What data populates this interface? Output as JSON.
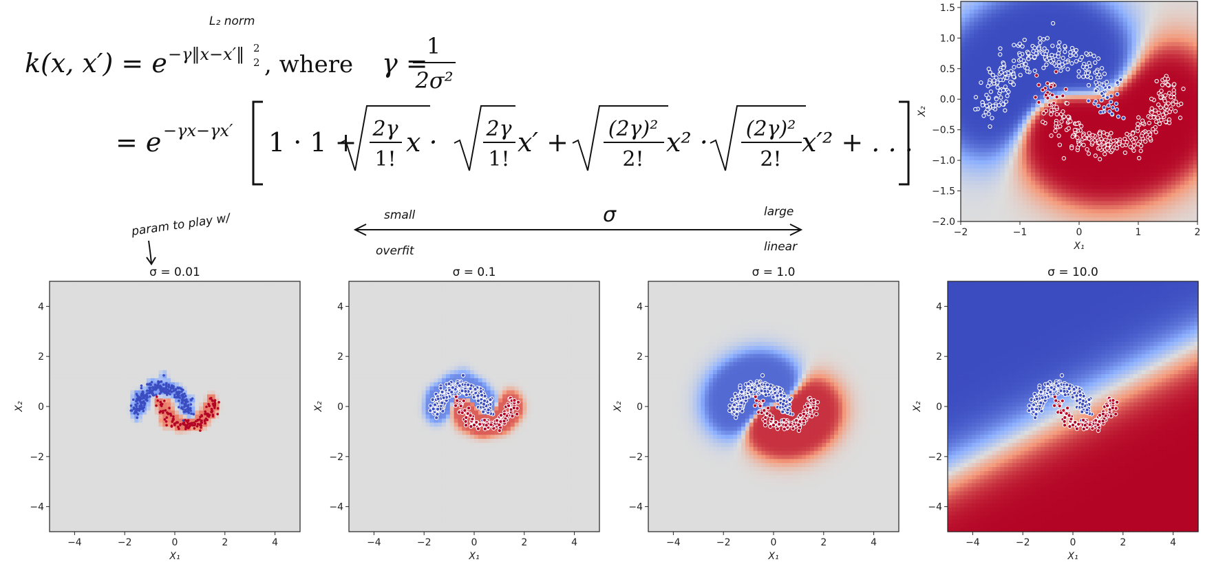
{
  "formula": {
    "lhs": "k(x, x′) = e",
    "exp1": "−γ‖x−x′‖",
    "exp1_sub": "2",
    "exp1_sup": "2",
    "where": ", where",
    "gamma_eq": "γ =",
    "gamma_num": "1",
    "gamma_den": "2σ²",
    "eq2": "= e",
    "exp2": "−γx−γx′",
    "t_one": "1 · 1 +",
    "t1_num": "2γ",
    "t1_den": "1!",
    "t1_var": "x ·",
    "t2_num": "2γ",
    "t2_den": "1!",
    "t2_var": "x′ +",
    "t3_num": "(2γ)²",
    "t3_den": "2!",
    "t3_var": "x² ·",
    "t4_num": "(2γ)²",
    "t4_den": "2!",
    "t4_var": "x′² + . . ."
  },
  "annotations": {
    "l2_norm": "L₂ norm",
    "param_note": "param to play w/",
    "small": "small",
    "sigma": "σ",
    "large": "large",
    "overfit": "overfit",
    "linear": "linear"
  },
  "colors": {
    "neg_region": "#3b4cc0",
    "pos_region": "#b40426",
    "neutral_region": "#dddddd",
    "point_fill_pos": "#b40426",
    "point_fill_neg": "#3b4cc0",
    "point_edge": "#ffffff",
    "boundary": "#222222"
  },
  "chart_data": [
    {
      "type": "scatter",
      "title": "",
      "xlabel": "X₁",
      "ylabel": "X₂",
      "xlim": [
        -2,
        2
      ],
      "ylim": [
        -2,
        1.6
      ],
      "xticks": [
        -2,
        -1,
        0,
        1,
        2
      ],
      "yticks": [
        -2.0,
        -1.5,
        -1.0,
        -0.5,
        0.0,
        0.5,
        1.0,
        1.5
      ],
      "background": "RBF SVM decision function (coolwarm)",
      "series": [
        {
          "color": "#3b4cc0",
          "shape": "upper moon",
          "center": [
            0,
            0.25
          ],
          "radius": 1,
          "noise": 0.15
        },
        {
          "color": "#b40426",
          "shape": "lower moon",
          "center": [
            1,
            0.25
          ],
          "radius": 1,
          "noise": 0.15
        }
      ]
    },
    {
      "type": "scatter",
      "title": "σ = 0.01",
      "xlabel": "X₁",
      "ylabel": "X₂",
      "xlim": [
        -5,
        5
      ],
      "ylim": [
        -5,
        5
      ],
      "xticks": [
        -4,
        -2,
        0,
        2,
        4
      ],
      "yticks": [
        -4,
        -2,
        0,
        2,
        4
      ],
      "sigma": 0.01
    },
    {
      "type": "scatter",
      "title": "σ = 0.1",
      "xlabel": "X₁",
      "ylabel": "X₂",
      "xlim": [
        -5,
        5
      ],
      "ylim": [
        -5,
        5
      ],
      "xticks": [
        -4,
        -2,
        0,
        2,
        4
      ],
      "yticks": [
        -4,
        -2,
        0,
        2,
        4
      ],
      "sigma": 0.1
    },
    {
      "type": "scatter",
      "title": "σ = 1.0",
      "xlabel": "X₁",
      "ylabel": "X₂",
      "xlim": [
        -5,
        5
      ],
      "ylim": [
        -5,
        5
      ],
      "xticks": [
        -4,
        -2,
        0,
        2,
        4
      ],
      "yticks": [
        -4,
        -2,
        0,
        2,
        4
      ],
      "sigma": 1.0
    },
    {
      "type": "scatter",
      "title": "σ = 10.0",
      "xlabel": "X₁",
      "ylabel": "X₂",
      "xlim": [
        -5,
        5
      ],
      "ylim": [
        -5,
        5
      ],
      "xticks": [
        -4,
        -2,
        0,
        2,
        4
      ],
      "yticks": [
        -4,
        -2,
        0,
        2,
        4
      ],
      "sigma": 10.0
    }
  ]
}
